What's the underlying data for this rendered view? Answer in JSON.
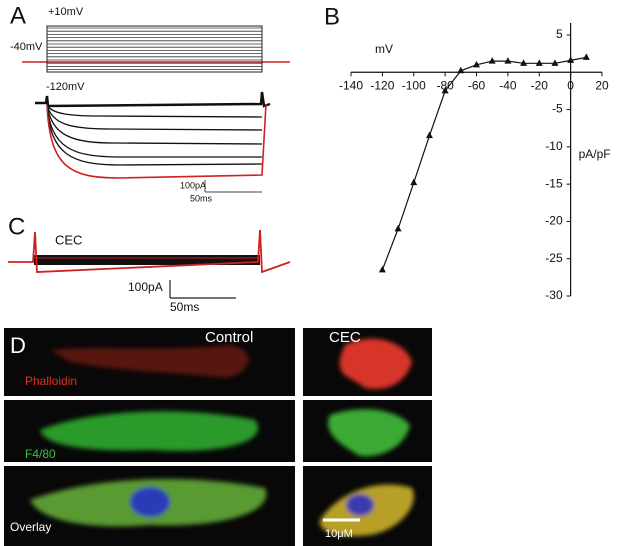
{
  "figure": {
    "panel_letters": [
      "A",
      "B",
      "C",
      "D"
    ],
    "panel_a": {
      "voltage_labels": [
        "+10mV",
        "-40mV",
        "-120mV"
      ],
      "scale_current": "100pA",
      "scale_time": "50ms"
    },
    "panel_c": {
      "label": "CEC",
      "scale_current": "100pA",
      "scale_time": "50ms"
    },
    "panel_d": {
      "columns": [
        "Control",
        "CEC"
      ],
      "rows": [
        "Phalloidin",
        "F4/80",
        "Overlay"
      ],
      "scale": "10μM"
    }
  },
  "chart_data": {
    "type": "line",
    "x_label": "mV",
    "y_label": "pA/pF",
    "x": [
      -120,
      -110,
      -100,
      -90,
      -80,
      -70,
      -60,
      -50,
      -40,
      -30,
      -20,
      -10,
      0,
      10
    ],
    "values": [
      -26.5,
      -21,
      -14.8,
      -8.5,
      -2.5,
      0.2,
      1,
      1.5,
      1.5,
      1.2,
      1.2,
      1.2,
      1.6,
      2
    ],
    "color": "#111111",
    "marker": "triangle",
    "xlim": [
      -140,
      20
    ],
    "xticks": [
      -140,
      -120,
      -100,
      -80,
      -60,
      -40,
      -20,
      0,
      20
    ],
    "ylim": [
      -30,
      5
    ],
    "yticks": [
      5,
      -5,
      -10,
      -15,
      -20,
      -25,
      -30
    ]
  }
}
